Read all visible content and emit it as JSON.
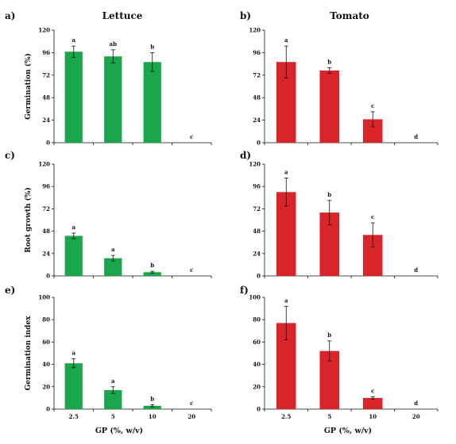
{
  "columns": [
    {
      "title": "Lettuce",
      "color": "#1aa64b"
    },
    {
      "title": "Tomato",
      "color": "#d9242a"
    }
  ],
  "x_axis_label": "GP (%, w/v)",
  "chart_data": [
    {
      "id": "a",
      "letter": "a)",
      "crop": "Lettuce",
      "type": "bar",
      "ylabel": "Germination (%)",
      "categories": [
        "2.5",
        "5",
        "10",
        "20"
      ],
      "values": [
        97,
        92,
        86,
        0
      ],
      "errors": [
        6,
        7,
        10,
        0
      ],
      "significance": [
        "a",
        "ab",
        "b",
        "c"
      ],
      "ylim": [
        0,
        120
      ],
      "yticks": [
        0,
        24,
        48,
        72,
        96,
        120
      ],
      "show_xticks": false
    },
    {
      "id": "b",
      "letter": "b)",
      "crop": "Tomato",
      "type": "bar",
      "ylabel": "",
      "categories": [
        "2.5",
        "5",
        "10",
        "20"
      ],
      "values": [
        86,
        77,
        25,
        0
      ],
      "errors": [
        17,
        3,
        8,
        0
      ],
      "significance": [
        "a",
        "b",
        "c",
        "d"
      ],
      "ylim": [
        0,
        120
      ],
      "yticks": [
        0,
        24,
        48,
        72,
        96,
        120
      ],
      "show_xticks": false
    },
    {
      "id": "c",
      "letter": "c)",
      "crop": "Lettuce",
      "type": "bar",
      "ylabel": "Root growth (%)",
      "categories": [
        "2.5",
        "5",
        "10",
        "20"
      ],
      "values": [
        43,
        19,
        4,
        0
      ],
      "errors": [
        3,
        3,
        1,
        0
      ],
      "significance": [
        "a",
        "a",
        "b",
        "c"
      ],
      "ylim": [
        0,
        120
      ],
      "yticks": [
        0,
        24,
        48,
        72,
        96,
        120
      ],
      "show_xticks": false
    },
    {
      "id": "d",
      "letter": "d)",
      "crop": "Tomato",
      "type": "bar",
      "ylabel": "",
      "categories": [
        "2.5",
        "5",
        "10",
        "20"
      ],
      "values": [
        90,
        68,
        44,
        0
      ],
      "errors": [
        15,
        13,
        13,
        0
      ],
      "significance": [
        "a",
        "b",
        "c",
        "d"
      ],
      "ylim": [
        0,
        120
      ],
      "yticks": [
        0,
        24,
        48,
        72,
        96,
        120
      ],
      "show_xticks": false
    },
    {
      "id": "e",
      "letter": "e)",
      "crop": "Lettuce",
      "type": "bar",
      "ylabel": "Germination index",
      "categories": [
        "2.5",
        "5",
        "10",
        "20"
      ],
      "values": [
        41,
        17,
        3,
        0
      ],
      "errors": [
        4,
        3,
        1,
        0
      ],
      "significance": [
        "a",
        "a",
        "b",
        "c"
      ],
      "ylim": [
        0,
        100
      ],
      "yticks": [
        0,
        20,
        40,
        60,
        80,
        100
      ],
      "show_xticks": true
    },
    {
      "id": "f",
      "letter": "f)",
      "crop": "Tomato",
      "type": "bar",
      "ylabel": "",
      "categories": [
        "2.5",
        "5",
        "10",
        "20"
      ],
      "values": [
        77,
        52,
        10,
        0
      ],
      "errors": [
        15,
        9,
        1,
        0
      ],
      "significance": [
        "a",
        "b",
        "c",
        "d"
      ],
      "ylim": [
        0,
        100
      ],
      "yticks": [
        0,
        20,
        40,
        60,
        80,
        100
      ],
      "show_xticks": true
    }
  ]
}
